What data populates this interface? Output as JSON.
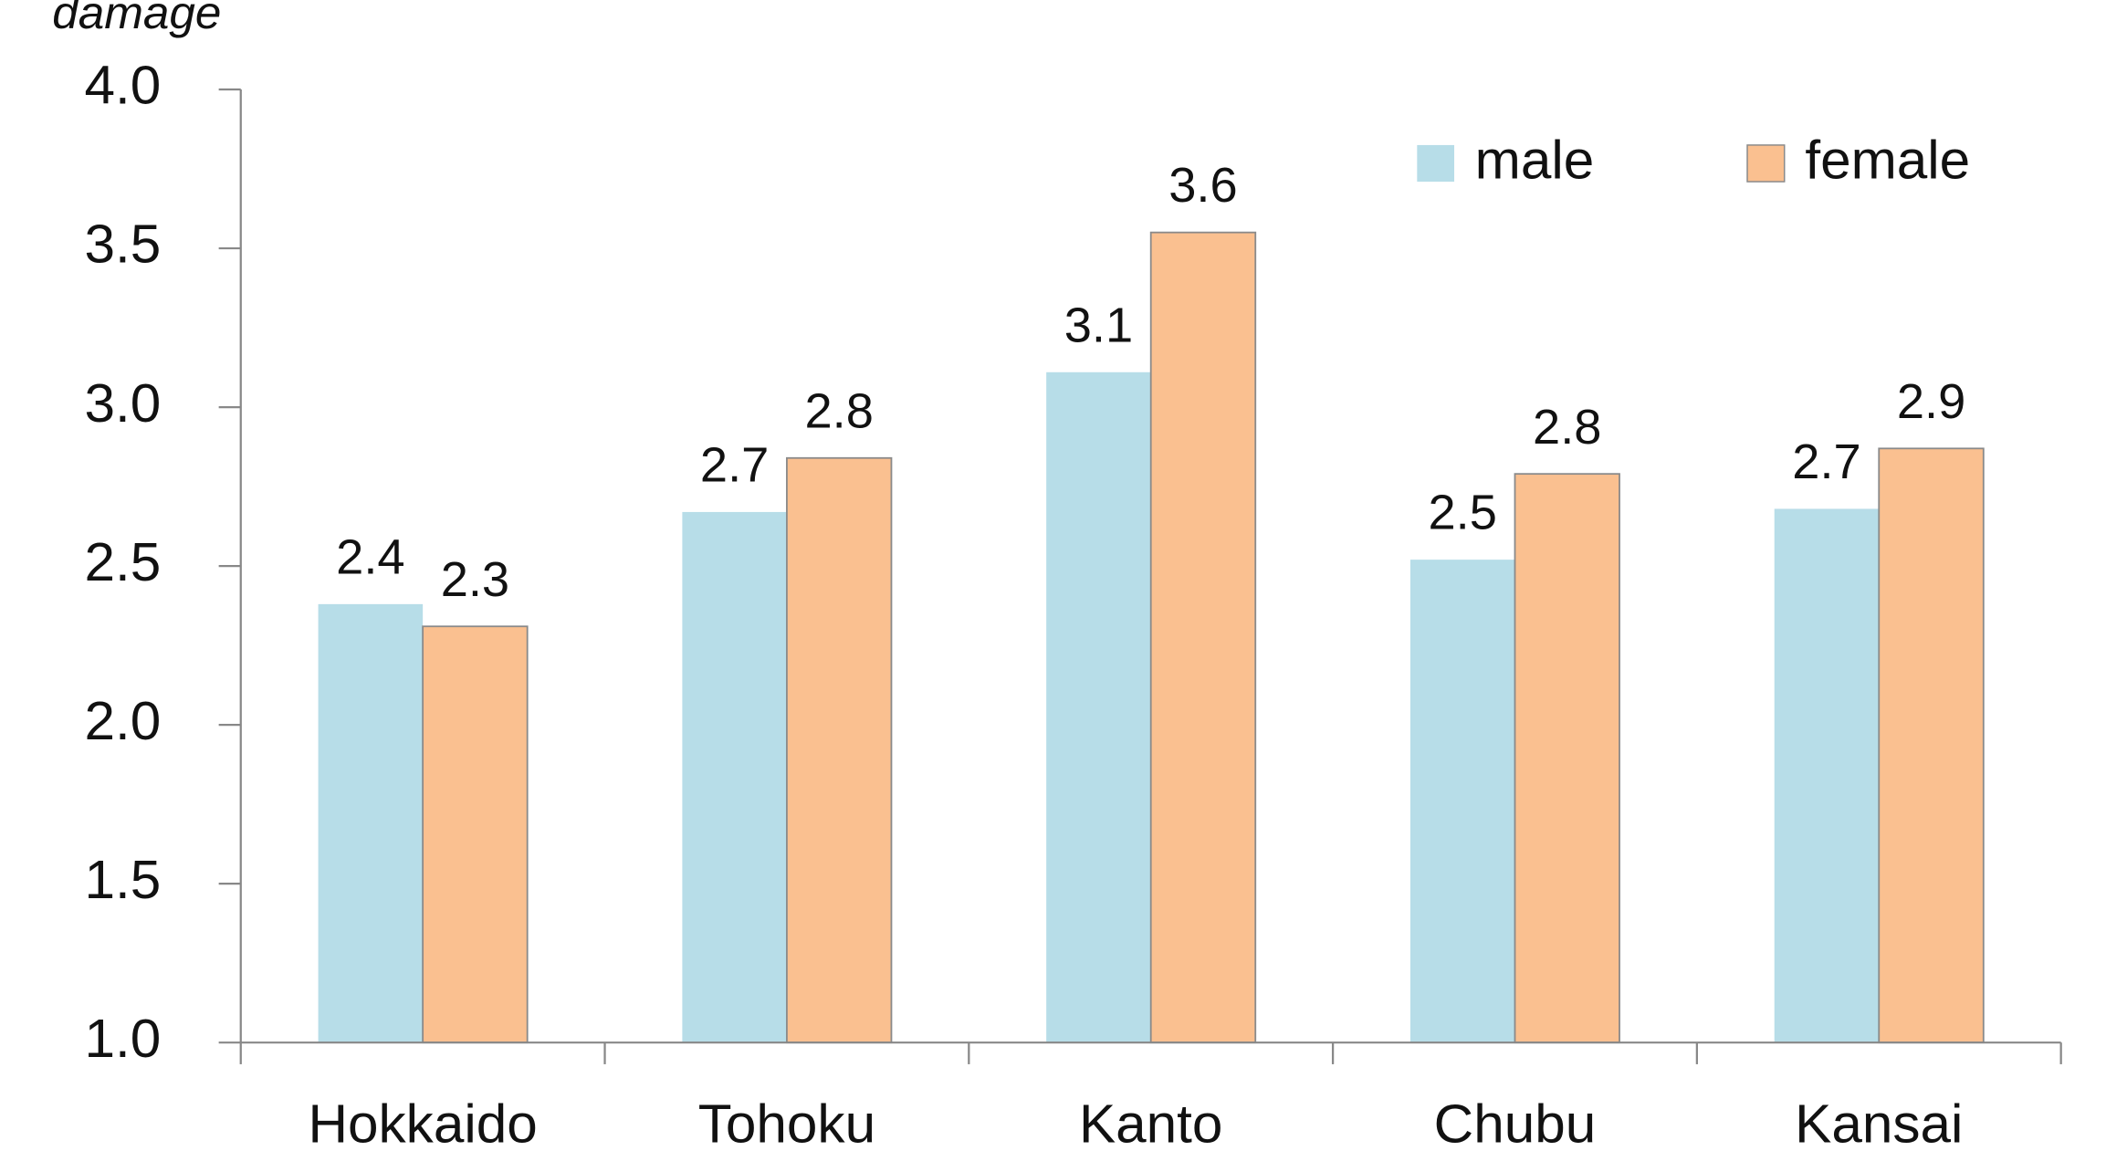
{
  "chart_data": {
    "type": "bar",
    "y_label": "damage",
    "categories": [
      "Hokkaido",
      "Tohoku",
      "Kanto",
      "Chubu",
      "Kansai"
    ],
    "series": [
      {
        "name": "male",
        "color": "#b7dde8",
        "values": [
          2.38,
          2.67,
          3.11,
          2.52,
          2.68
        ],
        "value_labels": [
          "2.4",
          "2.7",
          "3.1",
          "2.5",
          "2.7"
        ]
      },
      {
        "name": "female",
        "color": "#fac090",
        "values": [
          2.31,
          2.84,
          3.55,
          2.79,
          2.87
        ],
        "value_labels": [
          "2.3",
          "2.8",
          "3.6",
          "2.8",
          "2.9"
        ]
      }
    ],
    "ylim": [
      1,
      4
    ],
    "yticks": [
      {
        "value": 1,
        "label": "1.0"
      },
      {
        "value": 1.5,
        "label": "1.5"
      },
      {
        "value": 2,
        "label": "2.0"
      },
      {
        "value": 2.5,
        "label": "2.5"
      },
      {
        "value": 3,
        "label": "3.0"
      },
      {
        "value": 3.5,
        "label": "3.5"
      },
      {
        "value": 4,
        "label": "4.0"
      }
    ],
    "legend": "upper right"
  }
}
